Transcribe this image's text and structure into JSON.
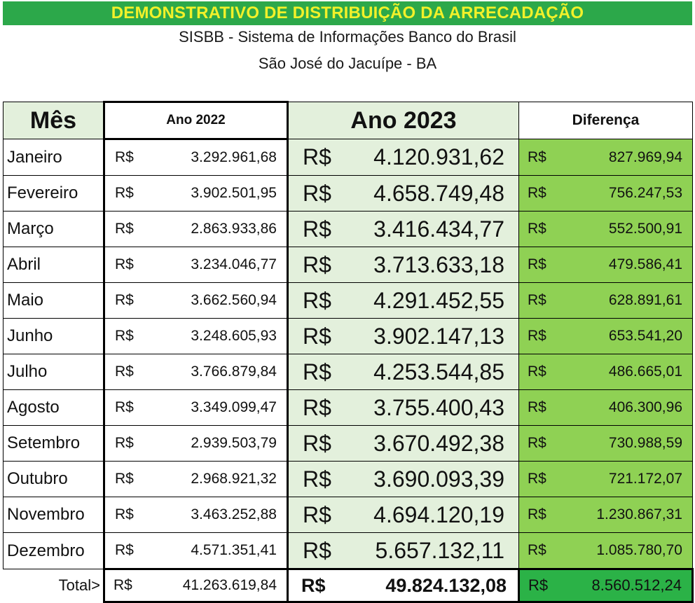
{
  "header": {
    "title": "DEMONSTRATIVO DE DISTRIBUIÇÃO DA ARRECADAÇÃO",
    "subtitle": "SISBB - Sistema de Informações Banco do Brasil",
    "location": "São José do Jacuípe - BA"
  },
  "table": {
    "columns": {
      "mes": "Mês",
      "ano2022": "Ano 2022",
      "ano2023": "Ano 2023",
      "diferenca": "Diferença"
    },
    "currency": "R$",
    "rows": [
      {
        "mes": "Janeiro",
        "v2022": "3.292.961,68",
        "v2023": "4.120.931,62",
        "dif": "827.969,94"
      },
      {
        "mes": "Fevereiro",
        "v2022": "3.902.501,95",
        "v2023": "4.658.749,48",
        "dif": "756.247,53"
      },
      {
        "mes": "Março",
        "v2022": "2.863.933,86",
        "v2023": "3.416.434,77",
        "dif": "552.500,91"
      },
      {
        "mes": "Abril",
        "v2022": "3.234.046,77",
        "v2023": "3.713.633,18",
        "dif": "479.586,41"
      },
      {
        "mes": "Maio",
        "v2022": "3.662.560,94",
        "v2023": "4.291.452,55",
        "dif": "628.891,61"
      },
      {
        "mes": "Junho",
        "v2022": "3.248.605,93",
        "v2023": "3.902.147,13",
        "dif": "653.541,20"
      },
      {
        "mes": "Julho",
        "v2022": "3.766.879,84",
        "v2023": "4.253.544,85",
        "dif": "486.665,01"
      },
      {
        "mes": "Agosto",
        "v2022": "3.349.099,47",
        "v2023": "3.755.400,43",
        "dif": "406.300,96"
      },
      {
        "mes": "Setembro",
        "v2022": "2.939.503,79",
        "v2023": "3.670.492,38",
        "dif": "730.988,59"
      },
      {
        "mes": "Outubro",
        "v2022": "2.968.921,32",
        "v2023": "3.690.093,39",
        "dif": "721.172,07"
      },
      {
        "mes": "Novembro",
        "v2022": "3.463.252,88",
        "v2023": "4.694.120,19",
        "dif": "1.230.867,31"
      },
      {
        "mes": "Dezembro",
        "v2022": "4.571.351,41",
        "v2023": "5.657.132,11",
        "dif": "1.085.780,70"
      }
    ],
    "total": {
      "label": "Total>",
      "v2022": "41.263.619,84",
      "v2023": "49.824.132,08",
      "dif": "8.560.512,24"
    }
  },
  "colors": {
    "banner_bg": "#2ca84a",
    "banner_text": "#f2f12a",
    "light_green": "#e3f0dc",
    "diff_green": "#8fd154",
    "total_diff_green": "#2bb247"
  }
}
